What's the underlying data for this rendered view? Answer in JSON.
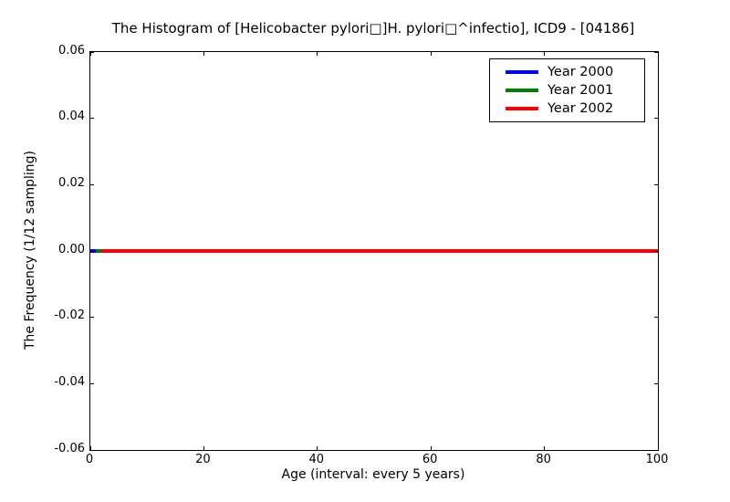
{
  "chart_data": {
    "type": "line",
    "title": "The Histogram of [Helicobacter pylori□]H. pylori□^infectio], ICD9 - [04186]",
    "xlabel": "Age (interval: every 5 years)",
    "ylabel": "The Frequency (1/12 sampling)",
    "xlim": [
      0,
      100
    ],
    "ylim": [
      -0.06,
      0.06
    ],
    "xtick_values": [
      0,
      20,
      40,
      60,
      80,
      100
    ],
    "xtick_labels": [
      "0",
      "20",
      "40",
      "60",
      "80",
      "100"
    ],
    "ytick_values": [
      0.06,
      0.04,
      0.02,
      0.0,
      -0.02,
      -0.04,
      -0.06
    ],
    "ytick_labels": [
      "0.06",
      "0.04",
      "0.02",
      "0.00",
      "-0.02",
      "-0.04",
      "-0.06"
    ],
    "grid": false,
    "tick_style": "inward-all-sides",
    "legend": {
      "position": "upper right",
      "entries": [
        {
          "label": "Year 2000",
          "color": "#0000ff"
        },
        {
          "label": "Year 2001",
          "color": "#008000"
        },
        {
          "label": "Year 2002",
          "color": "#ff0000"
        }
      ]
    },
    "series": [
      {
        "name": "Year 2000",
        "color": "#0000ff",
        "x": [
          0,
          100
        ],
        "y": [
          0,
          0
        ]
      },
      {
        "name": "Year 2001",
        "color": "#008000",
        "x": [
          0,
          100
        ],
        "y": [
          0,
          0
        ]
      },
      {
        "name": "Year 2002",
        "color": "#ff0000",
        "x": [
          0,
          100
        ],
        "y": [
          0,
          0
        ]
      }
    ],
    "visible_line_segments": [
      {
        "series": "Year 2000",
        "color": "#0000ff",
        "x_start": 0,
        "x_end": 1,
        "y": 0
      },
      {
        "series": "Year 2001",
        "color": "#008000",
        "x_start": 1,
        "x_end": 2,
        "y": 0
      },
      {
        "series": "Year 2002",
        "color": "#ff0000",
        "x_start": 2,
        "x_end": 100,
        "y": 0
      }
    ]
  }
}
